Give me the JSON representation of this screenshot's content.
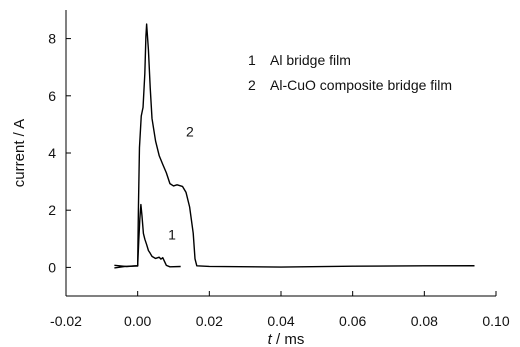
{
  "chart_data": {
    "type": "line",
    "xlabel_italic": "t",
    "xlabel_unit": " / ms",
    "ylabel": "current / A",
    "xlim": [
      -0.02,
      0.1
    ],
    "ylim": [
      -1,
      9
    ],
    "xticks": [
      -0.02,
      0.0,
      0.02,
      0.04,
      0.06,
      0.08,
      0.1
    ],
    "xtick_labels": [
      "-0.02",
      "0.00",
      "0.02",
      "0.04",
      "0.06",
      "0.08",
      "0.10"
    ],
    "yticks": [
      0,
      2,
      4,
      6,
      8
    ],
    "ytick_labels": [
      "0",
      "2",
      "4",
      "6",
      "8"
    ],
    "grid": false,
    "legend": [
      {
        "number": "1",
        "text": "Al bridge film"
      },
      {
        "number": "2",
        "text": "Al-CuO composite bridge film"
      }
    ],
    "series": [
      {
        "id": "1",
        "x": [
          -0.0065,
          -0.003,
          0.0,
          0.0003,
          0.0006,
          0.0009,
          0.0012,
          0.0016,
          0.002,
          0.0025,
          0.003,
          0.0035,
          0.004,
          0.005,
          0.006,
          0.0065,
          0.007,
          0.008,
          0.009,
          0.012
        ],
        "y": [
          0.05,
          0.05,
          0.05,
          0.9,
          1.7,
          2.2,
          1.8,
          1.2,
          1.0,
          0.8,
          0.6,
          0.5,
          0.4,
          0.3,
          0.35,
          0.3,
          0.35,
          0.05,
          0.03,
          0.03
        ]
      },
      {
        "id": "2",
        "x": [
          -0.0065,
          -0.0035,
          -0.001,
          0.0,
          0.0002,
          0.0005,
          0.001,
          0.0015,
          0.002,
          0.0023,
          0.0025,
          0.003,
          0.0035,
          0.004,
          0.005,
          0.006,
          0.007,
          0.008,
          0.009,
          0.01,
          0.011,
          0.0125,
          0.0135,
          0.0145,
          0.0155,
          0.016,
          0.0165,
          0.02,
          0.04,
          0.06,
          0.08,
          0.094
        ],
        "y": [
          0.0,
          0.05,
          0.03,
          0.05,
          2.0,
          4.2,
          5.3,
          5.6,
          6.8,
          8.1,
          8.5,
          7.6,
          6.3,
          5.2,
          4.4,
          3.9,
          3.6,
          3.3,
          2.95,
          2.85,
          2.9,
          2.85,
          2.6,
          2.1,
          1.2,
          0.3,
          0.05,
          0.02,
          0.03,
          0.02,
          0.05,
          0.05
        ]
      }
    ],
    "curve_labels": [
      {
        "text": "1",
        "x": 0.0085,
        "y": 1.15
      },
      {
        "text": "2",
        "x": 0.0135,
        "y": 4.75
      }
    ]
  }
}
